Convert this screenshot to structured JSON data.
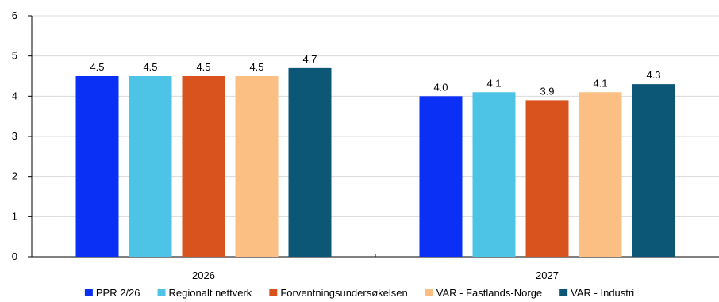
{
  "chart_data": {
    "type": "bar",
    "categories": [
      "2026",
      "2027"
    ],
    "series": [
      {
        "name": "PPR 2/26",
        "values": [
          4.5,
          4.0
        ],
        "color": "#0a2ff5"
      },
      {
        "name": "Regionalt nettverk",
        "values": [
          4.5,
          4.1
        ],
        "color": "#4dc3e5"
      },
      {
        "name": "Forventningsundersøkelsen",
        "values": [
          4.5,
          3.9
        ],
        "color": "#d9531e"
      },
      {
        "name": "VAR - Fastlands-Norge",
        "values": [
          4.5,
          4.1
        ],
        "color": "#fbbf84"
      },
      {
        "name": "VAR - Industri",
        "values": [
          4.7,
          4.3
        ],
        "color": "#0b5775"
      }
    ],
    "data_labels": [
      [
        "4.5",
        "4.0"
      ],
      [
        "4.5",
        "4.1"
      ],
      [
        "4.5",
        "3.9"
      ],
      [
        "4.5",
        "4.1"
      ],
      [
        "4.7",
        "4.3"
      ]
    ],
    "y_ticks": [
      "0",
      "1",
      "2",
      "3",
      "4",
      "5",
      "6"
    ],
    "ylim": [
      0,
      6
    ],
    "grid": true,
    "legend_position": "bottom",
    "title": "",
    "xlabel": "",
    "ylabel": ""
  }
}
